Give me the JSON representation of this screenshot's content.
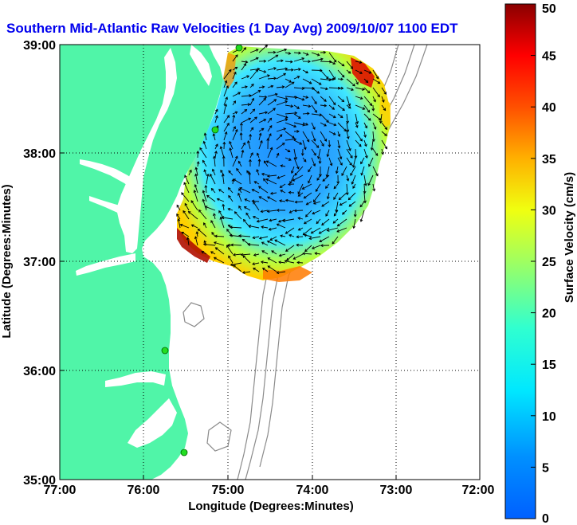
{
  "chart_data": {
    "type": "vector_map",
    "title": "Southern Mid-Atlantic Raw Velocities (1 Day Avg) 2009/10/07 1100 EDT",
    "xlabel": "Longitude (Degrees:Minutes)",
    "ylabel": "Latitude (Degrees:Minutes)",
    "xlim": [
      -77,
      -72
    ],
    "ylim": [
      35,
      39
    ],
    "x_ticks": [
      -77,
      -76,
      -75,
      -74,
      -73,
      -72
    ],
    "x_tick_labels": [
      "77:00",
      "76:00",
      "75:00",
      "74:00",
      "73:00",
      "72:00"
    ],
    "y_ticks": [
      35,
      36,
      37,
      38,
      39
    ],
    "y_tick_labels": [
      "35:00",
      "36:00",
      "37:00",
      "38:00",
      "39:00"
    ],
    "grid": "dotted",
    "colorbar": {
      "label": "Surface Velocity (cm/s)",
      "min": 0,
      "max": 50,
      "ticks": [
        0,
        5,
        10,
        15,
        20,
        25,
        30,
        35,
        40,
        45,
        50
      ],
      "colormap": "jet"
    },
    "speed_regions": [
      {
        "area": "north-east edge near 39:00N 73:30W",
        "speed_cm_s": 45
      },
      {
        "area": "south-west edge near 37:00N 75:30W",
        "speed_cm_s": 42
      },
      {
        "area": "southern rim near 36:50N 74:15W",
        "speed_cm_s": 35
      },
      {
        "area": "central field 37:30-38:30N 74-75W",
        "speed_cm_s": 8
      }
    ],
    "stations": [
      {
        "lat": 39.0,
        "lon": -74.85
      },
      {
        "lat": 38.2,
        "lon": -75.15
      },
      {
        "lat": 36.2,
        "lon": -75.75
      },
      {
        "lat": 35.3,
        "lon": -75.55
      }
    ],
    "colors": {
      "land": "#50f5a8",
      "title": "#0000ee",
      "station": "#22dd22",
      "bathymetry": "#8a8a8a"
    }
  }
}
